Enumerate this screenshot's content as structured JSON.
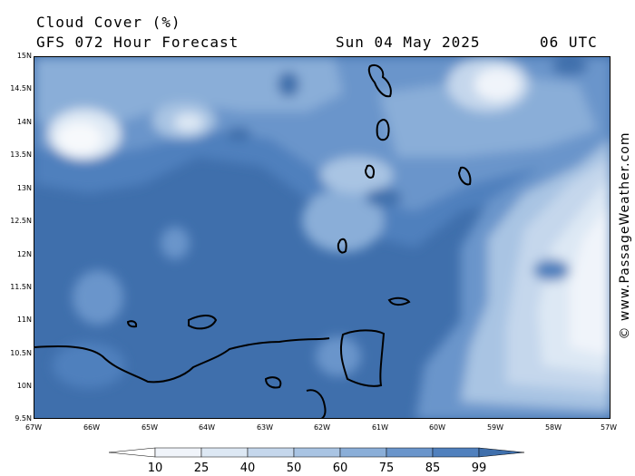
{
  "header": {
    "title": "Cloud Cover (%)",
    "model": "GFS 072 Hour Forecast",
    "date": "Sun 04 May 2025",
    "time": "06 UTC"
  },
  "watermark": "© www.PassageWeather.com",
  "axes": {
    "lat_labels": [
      "15N",
      "14.5N",
      "14N",
      "13.5N",
      "13N",
      "12.5N",
      "12N",
      "11.5N",
      "11N",
      "10.5N",
      "10N",
      "9.5N"
    ],
    "lon_labels": [
      "67W",
      "66W",
      "65W",
      "64W",
      "63W",
      "62W",
      "61W",
      "60W",
      "59W",
      "58W",
      "57W"
    ]
  },
  "legend": {
    "labels": [
      "10",
      "25",
      "40",
      "50",
      "60",
      "75",
      "85",
      "99"
    ],
    "colors": [
      "#ffffff",
      "#f0f4fa",
      "#dde8f4",
      "#c5d7ec",
      "#a9c4e3",
      "#8aaed8",
      "#6a95cb",
      "#5080bd",
      "#3f6fac"
    ]
  },
  "map": {
    "base_color": "#3f6fac",
    "region": "Southern Caribbean / Lesser Antilles"
  }
}
